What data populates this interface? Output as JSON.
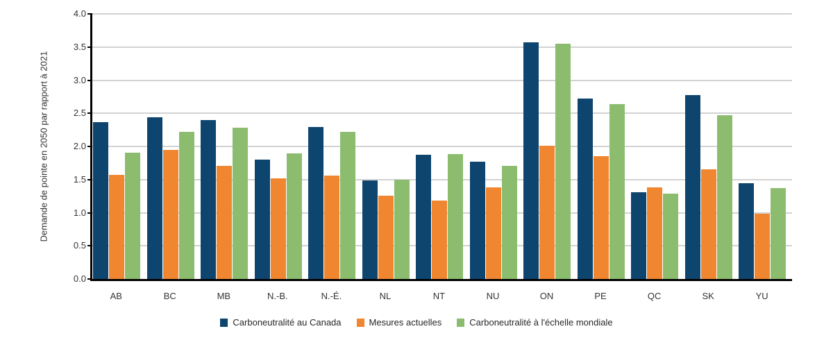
{
  "chart_data": {
    "type": "bar",
    "title": "",
    "ylabel": "Demande de pointe en 2050 par rapport à 2021",
    "xlabel": "",
    "ylim": [
      0,
      4
    ],
    "ytick_step": 0.5,
    "yticks": [
      "0.0",
      "0.5",
      "1.0",
      "1.5",
      "2.0",
      "2.5",
      "3.0",
      "3.5",
      "4.0"
    ],
    "grid": "horizontal",
    "legend_position": "bottom",
    "categories": [
      "AB",
      "BC",
      "MB",
      "N.-B.",
      "N.-É.",
      "NL",
      "NT",
      "NU",
      "ON",
      "PE",
      "QC",
      "SK",
      "YU"
    ],
    "series": [
      {
        "name": "Carboneutralité au Canada",
        "color": "#0e456e",
        "values": [
          2.37,
          2.44,
          2.4,
          1.8,
          2.29,
          1.49,
          1.87,
          1.77,
          3.57,
          2.72,
          1.31,
          2.77,
          1.44
        ]
      },
      {
        "name": "Mesures actuelles",
        "color": "#f0862f",
        "values": [
          1.57,
          1.95,
          1.71,
          1.52,
          1.56,
          1.26,
          1.18,
          1.38,
          2.01,
          1.85,
          1.38,
          1.65,
          0.98
        ]
      },
      {
        "name": "Carboneutralité à l'échelle mondiale",
        "color": "#8cbd6f",
        "values": [
          1.91,
          2.22,
          2.28,
          1.9,
          2.22,
          1.5,
          1.88,
          1.71,
          3.55,
          2.64,
          1.29,
          2.47,
          1.37
        ]
      }
    ],
    "colors": {
      "gridline": "#d2d2d2",
      "axis": "#000000",
      "text": "#333333"
    }
  }
}
